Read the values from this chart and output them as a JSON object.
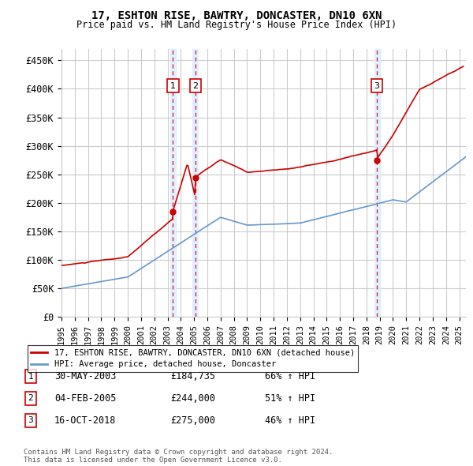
{
  "title1": "17, ESHTON RISE, BAWTRY, DONCASTER, DN10 6XN",
  "title2": "Price paid vs. HM Land Registry's House Price Index (HPI)",
  "yticks": [
    0,
    50000,
    100000,
    150000,
    200000,
    250000,
    300000,
    350000,
    400000,
    450000
  ],
  "ytick_labels": [
    "£0",
    "£50K",
    "£100K",
    "£150K",
    "£200K",
    "£250K",
    "£300K",
    "£350K",
    "£400K",
    "£450K"
  ],
  "ylim": [
    0,
    470000
  ],
  "xlim_start": 1995.0,
  "xlim_end": 2025.5,
  "xticks": [
    1995,
    1996,
    1997,
    1998,
    1999,
    2000,
    2001,
    2002,
    2003,
    2004,
    2005,
    2006,
    2007,
    2008,
    2009,
    2010,
    2011,
    2012,
    2013,
    2014,
    2015,
    2016,
    2017,
    2018,
    2019,
    2020,
    2021,
    2022,
    2023,
    2024,
    2025
  ],
  "sale_dates": [
    2003.41,
    2005.09,
    2018.79
  ],
  "sale_prices": [
    184735,
    244000,
    275000
  ],
  "sale_labels": [
    "1",
    "2",
    "3"
  ],
  "legend_line1": "17, ESHTON RISE, BAWTRY, DONCASTER, DN10 6XN (detached house)",
  "legend_line2": "HPI: Average price, detached house, Doncaster",
  "table_data": [
    [
      "1",
      "30-MAY-2003",
      "£184,735",
      "66% ↑ HPI"
    ],
    [
      "2",
      "04-FEB-2005",
      "£244,000",
      "51% ↑ HPI"
    ],
    [
      "3",
      "16-OCT-2018",
      "£275,000",
      "46% ↑ HPI"
    ]
  ],
  "footer1": "Contains HM Land Registry data © Crown copyright and database right 2024.",
  "footer2": "This data is licensed under the Open Government Licence v3.0.",
  "red_color": "#cc0000",
  "blue_color": "#6699cc",
  "shade_color": "#ddeeff",
  "grid_color": "#cccccc",
  "bg_color": "#ffffff"
}
